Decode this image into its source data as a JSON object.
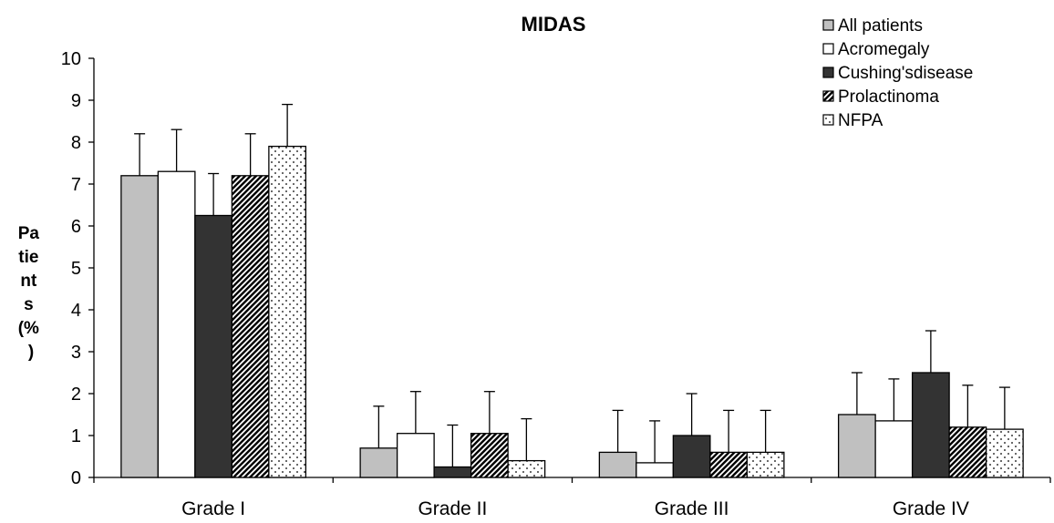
{
  "chart_data": {
    "type": "bar",
    "title": "MIDAS",
    "ylabel": "Patients (%)",
    "xlabel": "",
    "ylim": [
      0,
      10
    ],
    "yticks": [
      0,
      1,
      2,
      3,
      4,
      5,
      6,
      7,
      8,
      9,
      10
    ],
    "grid": false,
    "legend_position": "top-right",
    "categories": [
      "Grade I",
      "Grade II",
      "Grade III",
      "Grade IV"
    ],
    "series": [
      {
        "name": "All patients",
        "values": [
          7.2,
          0.7,
          0.6,
          1.5
        ],
        "errors": [
          1.0,
          1.0,
          1.0,
          1.0
        ],
        "fill": "#c0c0c0",
        "pattern": "solid"
      },
      {
        "name": "Acromegaly",
        "values": [
          7.3,
          1.05,
          0.35,
          1.35
        ],
        "errors": [
          1.0,
          1.0,
          1.0,
          1.0
        ],
        "fill": "#ffffff",
        "pattern": "solid"
      },
      {
        "name": "Cushing'sdisease",
        "values": [
          6.25,
          0.25,
          1.0,
          2.5
        ],
        "errors": [
          1.0,
          1.0,
          1.0,
          1.0
        ],
        "fill": "#333333",
        "pattern": "solid"
      },
      {
        "name": "Prolactinoma",
        "values": [
          7.2,
          1.05,
          0.6,
          1.2
        ],
        "errors": [
          1.0,
          1.0,
          1.0,
          1.0
        ],
        "fill": "#000000",
        "pattern": "diagonal-stripes"
      },
      {
        "name": "NFPA",
        "values": [
          7.9,
          0.4,
          0.6,
          1.15
        ],
        "errors": [
          1.0,
          1.0,
          1.0,
          1.0
        ],
        "fill": "#ffffff",
        "pattern": "dots"
      }
    ]
  }
}
